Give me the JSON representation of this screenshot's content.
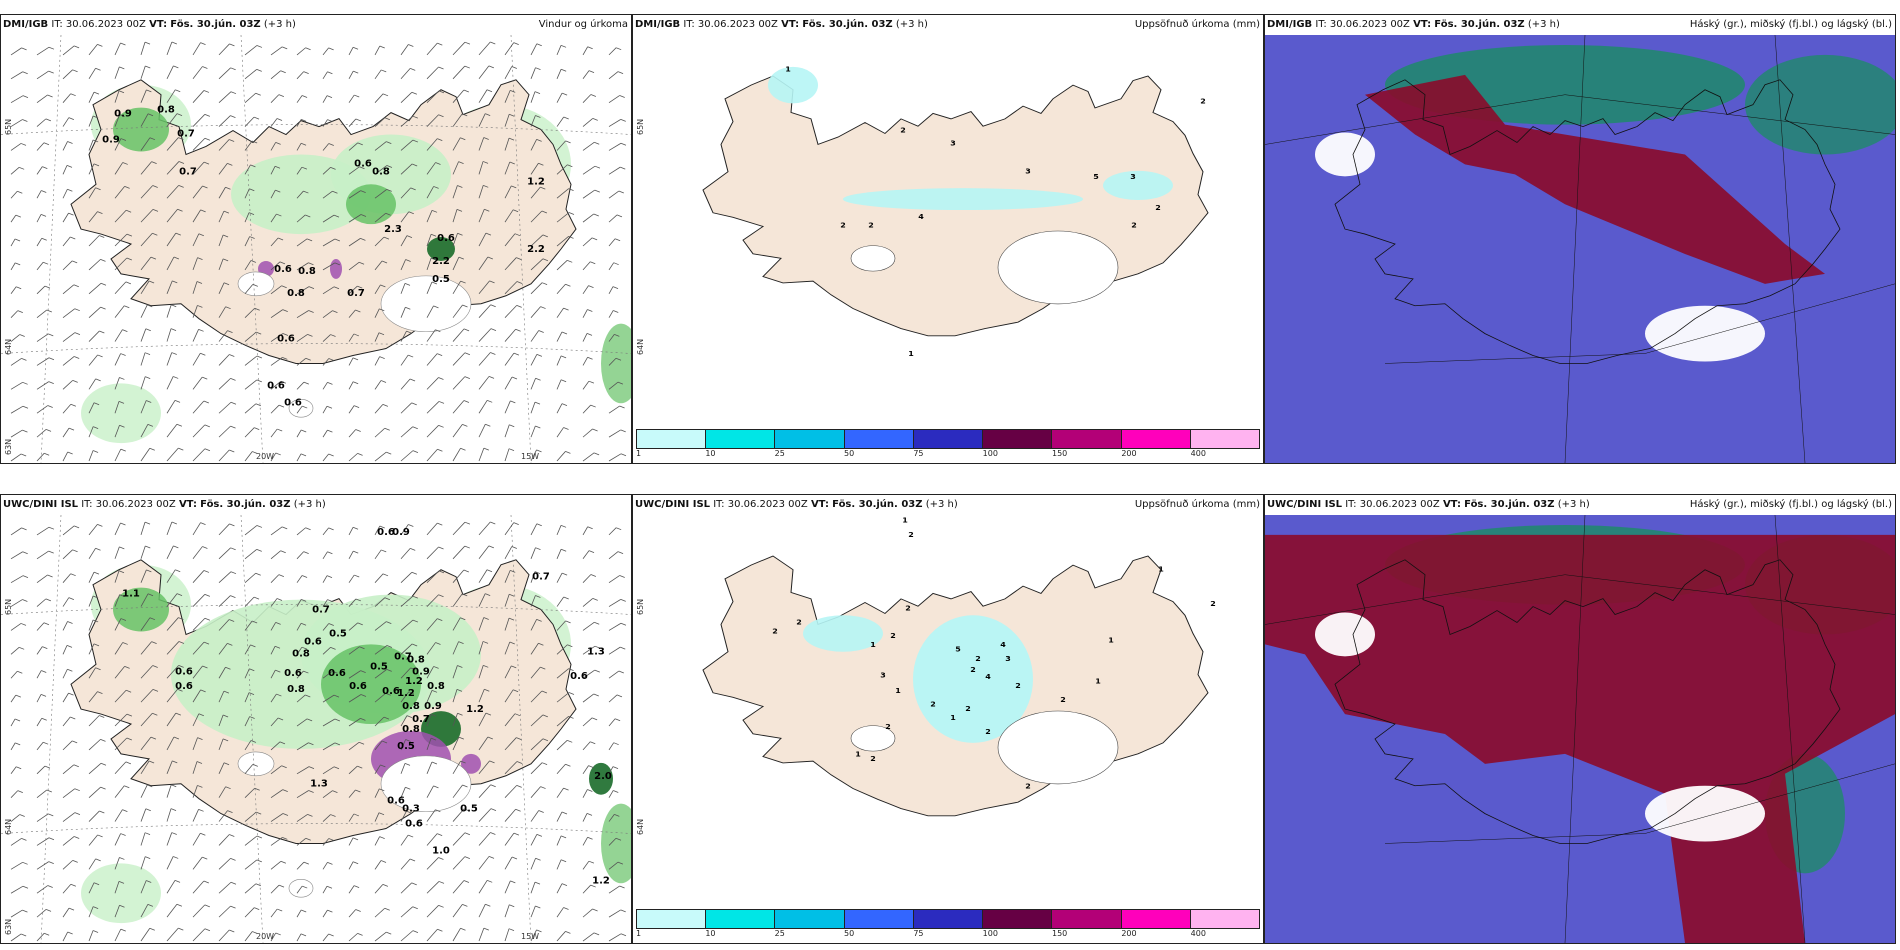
{
  "panels": [
    {
      "id": "p1",
      "model": "DMI/IGB",
      "it": "IT: 30.06.2023 00Z",
      "vt_label": "VT:",
      "vt": "Fös. 30.jún. 03Z",
      "lead": "(+3 h)",
      "right": "Vindur og úrkoma",
      "kind": "wind",
      "values": [
        "0.9",
        "0.8",
        "0.7",
        "0.9",
        "0.7",
        "0.6",
        "0.8",
        "1.2",
        "2.3",
        "0.6",
        "2.2",
        "0.5",
        "0.6",
        "0.8",
        "0.8",
        "0.7",
        "2.2",
        "0.6",
        "0.6",
        "0.6"
      ],
      "lat_labels": [
        "65N",
        "64N",
        "63N"
      ],
      "lon_labels": [
        "20W",
        "15W"
      ]
    },
    {
      "id": "p2",
      "model": "DMI/IGB",
      "it": "IT: 30.06.2023 00Z",
      "vt_label": "VT:",
      "vt": "Fös. 30.jún. 03Z",
      "lead": "(+3 h)",
      "right": "Uppsöfnuð úrkoma (mm)",
      "kind": "accum",
      "values": [
        "1",
        "2",
        "2",
        "3",
        "3",
        "5",
        "3",
        "2",
        "2",
        "2",
        "4",
        "2",
        "1"
      ],
      "lat_labels": [
        "65N",
        "64N"
      ],
      "lon_labels": []
    },
    {
      "id": "p3",
      "model": "DMI/IGB",
      "it": "IT: 30.06.2023 00Z",
      "vt_label": "VT:",
      "vt": "Fös. 30.jún. 03Z",
      "lead": "(+3 h)",
      "right": "Háský (gr.), miðský (fj.bl.) og lágský (bl.)",
      "kind": "cloud"
    },
    {
      "id": "p4",
      "model": "UWC/DINI ISL",
      "it": "IT: 30.06.2023 00Z",
      "vt_label": "VT:",
      "vt": "Fös. 30.jún. 03Z",
      "lead": "(+3 h)",
      "right": "",
      "kind": "wind",
      "values": [
        "0.6",
        "0.9",
        "0.7",
        "1.1",
        "0.7",
        "0.6",
        "0.5",
        "0.7",
        "1.3",
        "0.6",
        "0.6",
        "0.8",
        "0.6",
        "0.6",
        "0.6",
        "0.8",
        "0.5",
        "0.9",
        "0.8",
        "1.2",
        "0.6",
        "1.2",
        "0.8",
        "0.8",
        "1.2",
        "0.9",
        "0.7",
        "0.8",
        "0.5",
        "1.3",
        "0.6",
        "0.3",
        "0.6",
        "0.5",
        "1.0",
        "2.0",
        "1.2",
        "0.6"
      ],
      "lat_labels": [
        "65N",
        "64N",
        "63N"
      ],
      "lon_labels": [
        "20W",
        "15W"
      ]
    },
    {
      "id": "p5",
      "model": "UWC/DINI ISL",
      "it": "IT: 30.06.2023 00Z",
      "vt_label": "VT:",
      "vt": "Fös. 30.jún. 03Z",
      "lead": "(+3 h)",
      "right": "Uppsöfnuð úrkoma (mm)",
      "kind": "accum",
      "values": [
        "1",
        "2",
        "1",
        "2",
        "2",
        "2",
        "2",
        "1",
        "3",
        "5",
        "2",
        "4",
        "2",
        "3",
        "2",
        "4",
        "2",
        "1",
        "2",
        "1",
        "2",
        "2",
        "2",
        "1",
        "2",
        "1",
        "1",
        "2",
        "2"
      ],
      "lat_labels": [
        "65N",
        "64N"
      ],
      "lon_labels": []
    },
    {
      "id": "p6",
      "model": "UWC/DINI ISL",
      "it": "IT: 30.06.2023 00Z",
      "vt_label": "VT:",
      "vt": "Fös. 30.jún. 03Z",
      "lead": "(+3 h)",
      "right": "Háský (gr.), miðský (fj.bl.) og lágský (bl.)",
      "kind": "cloud"
    }
  ],
  "colorbar": {
    "labels": [
      "1",
      "10",
      "25",
      "50",
      "75",
      "100",
      "150",
      "200",
      "400"
    ],
    "colors": [
      "#c8fafa",
      "#00e6e6",
      "#00bfe6",
      "#3366ff",
      "#2b2bbf",
      "#660044",
      "#b30077",
      "#ff00bb",
      "#ffb3f0"
    ]
  },
  "colors": {
    "land": "#f5e6d8",
    "cloud_bg": "#5a5acd",
    "cloud_high": "#8b0a2a",
    "cloud_mid": "#1f8a6a",
    "precip_light": "#c8f0c8",
    "precip_mid": "#66c266",
    "precip_dark": "#1a6b2a",
    "accum": "#b6f5f5",
    "purple": "#a050b0"
  }
}
